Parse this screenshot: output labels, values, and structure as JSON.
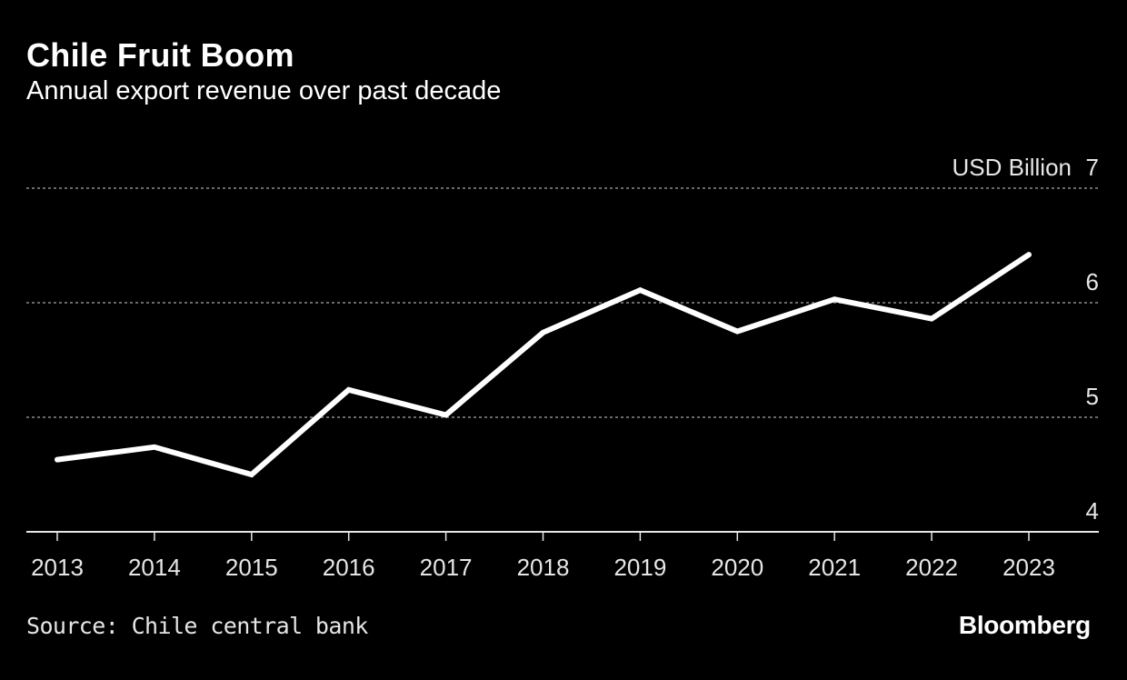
{
  "title": "Chile Fruit Boom",
  "subtitle": "Annual export revenue over past decade",
  "source": "Source: Chile central bank",
  "brand": "Bloomberg",
  "colors": {
    "background": "#000000",
    "line": "#ffffff",
    "grid": "#8c8c8c"
  },
  "chart_data": {
    "type": "line",
    "title": "Chile Fruit Boom",
    "subtitle": "Annual export revenue over past decade",
    "ylabel": "USD Billion",
    "x": [
      "2013",
      "2014",
      "2015",
      "2016",
      "2017",
      "2018",
      "2019",
      "2020",
      "2021",
      "2022",
      "2023"
    ],
    "series": [
      {
        "name": "Annual export revenue",
        "values": [
          4.63,
          4.74,
          4.5,
          5.24,
          5.02,
          5.74,
          6.11,
          5.75,
          6.03,
          5.86,
          6.42
        ]
      }
    ],
    "ylim": [
      4,
      7
    ],
    "yticks": [
      "4",
      "5",
      "6",
      "7"
    ],
    "grid": true,
    "legend": "none"
  }
}
